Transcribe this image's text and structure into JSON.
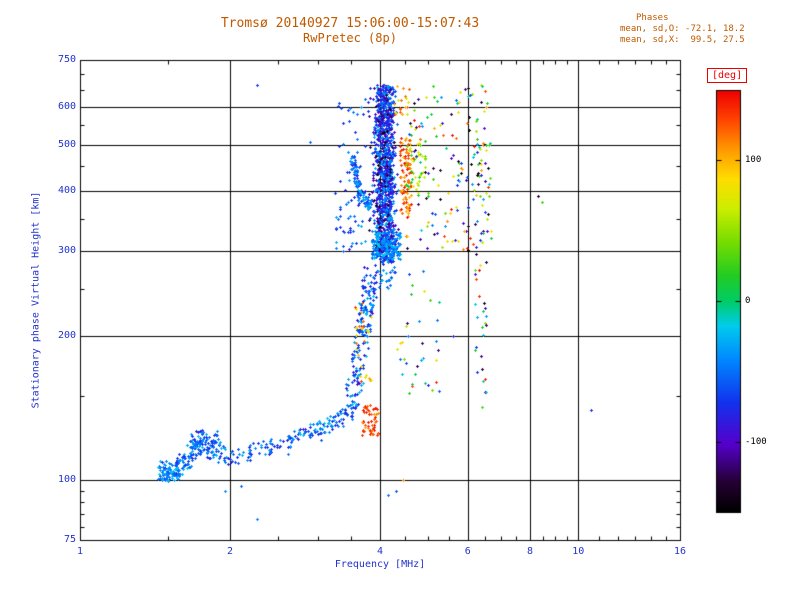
{
  "chart_data": {
    "type": "scatter",
    "title": "Tromsø 20140927 15:06:00-15:07:43",
    "subtitle": "RwPretec (8p)",
    "xlabel": "Frequency [MHz]",
    "ylabel": "Stationary phase Virtual Height [km]",
    "xscale": "log",
    "yscale": "log",
    "xlim": [
      1,
      16
    ],
    "ylim": [
      75,
      750
    ],
    "xticks": [
      1,
      2,
      4,
      6,
      8,
      10,
      16
    ],
    "xticks_minor": [
      1.5,
      2.5,
      3,
      3.5,
      4.5,
      5,
      5.5,
      6.5,
      7,
      7.5,
      8.5,
      9,
      9.5,
      11,
      12,
      13,
      14,
      15
    ],
    "yticks": [
      75,
      100,
      200,
      300,
      400,
      500,
      600,
      750
    ],
    "yticks_minor": [
      80,
      85,
      90,
      95,
      150,
      250,
      350,
      450,
      550,
      650,
      700
    ],
    "grid_x": [
      2,
      4,
      6,
      8,
      10
    ],
    "grid_y": [
      100,
      200,
      300,
      400,
      500,
      600
    ],
    "stats": {
      "header": "Phases",
      "line1": "mean, sd,O: -72.1, 18.2",
      "line2": "mean, sd,X:  99.5, 27.5"
    },
    "colorbar": {
      "label": "[deg]",
      "ticks": [
        100,
        0,
        -100
      ],
      "min": -150,
      "max": 150,
      "stops": [
        [
          0.0,
          "#000000"
        ],
        [
          0.07,
          "#250033"
        ],
        [
          0.16,
          "#5500cc"
        ],
        [
          0.26,
          "#1133ee"
        ],
        [
          0.36,
          "#0088ff"
        ],
        [
          0.44,
          "#00ccee"
        ],
        [
          0.5,
          "#00cc66"
        ],
        [
          0.56,
          "#22cc22"
        ],
        [
          0.64,
          "#77dd00"
        ],
        [
          0.72,
          "#ccee00"
        ],
        [
          0.79,
          "#ffdd00"
        ],
        [
          0.86,
          "#ff9900"
        ],
        [
          0.93,
          "#ff4400"
        ],
        [
          1.0,
          "#ee0000"
        ]
      ]
    },
    "colors": {
      "title": "#c05a00",
      "labels": "#2233cc",
      "deg": "#ee0000",
      "axis": "#000000",
      "bar_label": "#000000"
    },
    "clusters": [
      {
        "name": "e-trace",
        "mode": "trace",
        "n": 300,
        "path": [
          [
            1.45,
            103
          ],
          [
            1.55,
            106
          ],
          [
            1.63,
            109
          ],
          [
            1.72,
            117
          ],
          [
            1.82,
            120
          ],
          [
            1.92,
            113
          ],
          [
            2.05,
            112
          ],
          [
            2.2,
            114
          ],
          [
            2.4,
            116
          ],
          [
            2.6,
            119
          ],
          [
            2.8,
            125
          ],
          [
            3.0,
            128
          ],
          [
            3.2,
            132
          ],
          [
            3.4,
            136
          ],
          [
            3.55,
            142
          ]
        ],
        "jitter": [
          0.025,
          5
        ],
        "phase": [
          -85,
          -20
        ]
      },
      {
        "name": "e-start-dense",
        "mode": "box",
        "n": 60,
        "x": [
          1.43,
          1.62
        ],
        "y": [
          100,
          110
        ],
        "phase": [
          -60,
          -15
        ]
      },
      {
        "name": "e-knot",
        "mode": "box",
        "n": 70,
        "x": [
          1.66,
          1.9
        ],
        "y": [
          111,
          127
        ],
        "phase": [
          -80,
          -25
        ]
      },
      {
        "name": "retardation-warm",
        "mode": "box",
        "n": 55,
        "x": [
          3.68,
          3.97
        ],
        "y": [
          124,
          144
        ],
        "phase": [
          105,
          148
        ]
      },
      {
        "name": "riser",
        "mode": "trace",
        "n": 170,
        "path": [
          [
            3.5,
            148
          ],
          [
            3.55,
            158
          ],
          [
            3.6,
            170
          ],
          [
            3.64,
            184
          ],
          [
            3.68,
            200
          ],
          [
            3.72,
            216
          ],
          [
            3.76,
            234
          ],
          [
            3.8,
            252
          ],
          [
            3.84,
            270
          ]
        ],
        "jitter": [
          0.035,
          9
        ],
        "phase": [
          -95,
          -20
        ]
      },
      {
        "name": "riser-warm",
        "mode": "box",
        "n": 28,
        "x": [
          3.55,
          3.9
        ],
        "y": [
          160,
          235
        ],
        "phase": [
          55,
          135
        ]
      },
      {
        "name": "hook-arc",
        "mode": "trace",
        "n": 110,
        "path": [
          [
            3.53,
            470
          ],
          [
            3.55,
            440
          ],
          [
            3.59,
            415
          ],
          [
            3.65,
            396
          ],
          [
            3.73,
            383
          ],
          [
            3.82,
            374
          ]
        ],
        "jitter": [
          0.012,
          9
        ],
        "phase": [
          -85,
          -25
        ]
      },
      {
        "name": "left-sparse",
        "mode": "box",
        "n": 45,
        "x": [
          3.25,
          3.75
        ],
        "y": [
          295,
          405
        ],
        "phase": [
          -90,
          -25
        ]
      },
      {
        "name": "upper-left-sparse",
        "mode": "box",
        "n": 30,
        "x": [
          3.3,
          3.8
        ],
        "y": [
          420,
          645
        ],
        "phase": [
          -80,
          -25
        ]
      },
      {
        "name": "f-main",
        "mode": "column",
        "n": 1150,
        "x_gauss": [
          4.08,
          0.1
        ],
        "x": [
          3.8,
          4.45
        ],
        "y": [
          285,
          665
        ],
        "phase": [
          -115,
          -25
        ]
      },
      {
        "name": "f-main-dark",
        "mode": "column",
        "n": 70,
        "x_gauss": [
          4.05,
          0.12
        ],
        "x": [
          3.8,
          4.45
        ],
        "y": [
          300,
          640
        ],
        "phase": [
          -148,
          -105
        ]
      },
      {
        "name": "f-bottom",
        "mode": "box",
        "n": 140,
        "x": [
          3.85,
          4.4
        ],
        "y": [
          288,
          330
        ],
        "phase": [
          -60,
          -15
        ]
      },
      {
        "name": "f-below",
        "mode": "box",
        "n": 30,
        "x": [
          3.9,
          4.3
        ],
        "y": [
          250,
          290
        ],
        "phase": [
          -90,
          -20
        ]
      },
      {
        "name": "x-streak",
        "mode": "box",
        "n": 95,
        "x": [
          4.38,
          4.62
        ],
        "y": [
          355,
          520
        ],
        "phase": [
          95,
          148
        ]
      },
      {
        "name": "top-warm",
        "mode": "box",
        "n": 20,
        "x": [
          4.25,
          4.6
        ],
        "y": [
          575,
          665
        ],
        "phase": [
          60,
          140
        ]
      },
      {
        "name": "green-patch",
        "mode": "box",
        "n": 45,
        "x": [
          4.5,
          4.95
        ],
        "y": [
          395,
          525
        ],
        "phase": [
          -5,
          85
        ]
      },
      {
        "name": "east-sparse",
        "mode": "box",
        "n": 150,
        "x": [
          4.5,
          6.7
        ],
        "y": [
          300,
          665
        ],
        "phase": [
          -150,
          150
        ]
      },
      {
        "name": "mid-right-sparse",
        "mode": "box",
        "n": 35,
        "x": [
          4.3,
          5.3
        ],
        "y": [
          150,
          285
        ],
        "phase": [
          -125,
          140
        ]
      },
      {
        "name": "line-6p4",
        "mode": "box",
        "n": 55,
        "x": [
          6.2,
          6.55
        ],
        "y": [
          140,
          670
        ],
        "phase": [
          -150,
          150
        ]
      },
      {
        "name": "outliers",
        "mode": "points",
        "points": [
          [
            2.27,
            665,
            -70
          ],
          [
            2.89,
            505,
            -55
          ],
          [
            2.27,
            83,
            -45
          ],
          [
            1.95,
            95,
            -40
          ],
          [
            2.1,
            97,
            -55
          ],
          [
            8.3,
            390,
            -140
          ],
          [
            8.45,
            380,
            25
          ],
          [
            10.6,
            140,
            -75
          ],
          [
            4.3,
            95,
            -60
          ],
          [
            4.15,
            93,
            -50
          ],
          [
            4.45,
            100,
            110
          ],
          [
            3.05,
            121,
            -60
          ],
          [
            5.6,
            200,
            -80
          ],
          [
            5.4,
            360,
            40
          ],
          [
            5.75,
            420,
            -30
          ],
          [
            5.9,
            330,
            100
          ]
        ]
      }
    ]
  }
}
